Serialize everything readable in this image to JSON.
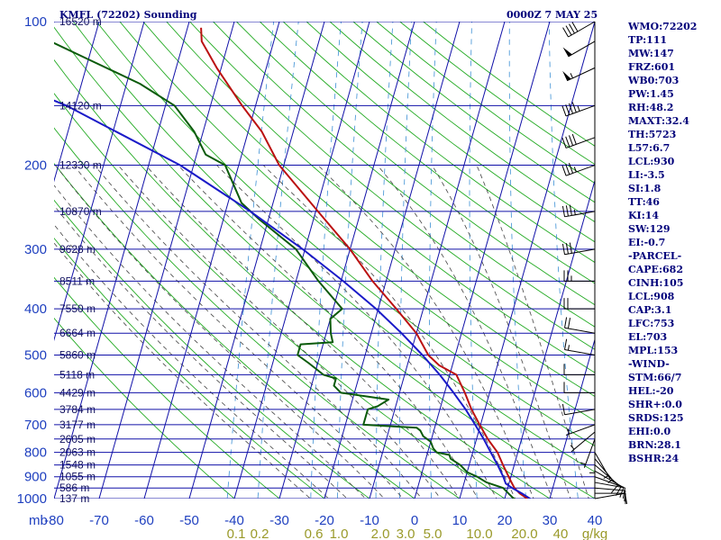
{
  "header": {
    "title": "KMFL (72202) Sounding",
    "time": "0000Z  7 MAY 25"
  },
  "stats": [
    "WMO:72202",
    "TP:111",
    "MW:147",
    "FRZ:601",
    "WB0:703",
    "PW:1.45",
    "RH:48.2",
    "MAXT:32.4",
    "TH:5723",
    "L57:6.7",
    "LCL:930",
    "LI:-3.5",
    "SI:1.8",
    "TT:46",
    "KI:14",
    "SW:129",
    "EI:-0.7",
    "-PARCEL-",
    "CAPE:682",
    "CINH:105",
    "LCL:908",
    "CAP:3.1",
    "LFC:753",
    "EL:703",
    "MPL:153",
    "-WIND-",
    "STM:66/7",
    "HEL:-20",
    "SHR+:0.0",
    "SRDS:125",
    "EHI:0.0",
    "BRN:28.1",
    "BSHR:24"
  ],
  "colors": {
    "isobar": "#1010a8",
    "isotherm": "#1010a8",
    "dry_adiabat": "#22aa22",
    "moist_adiabat": "#444444",
    "mixing_ratio": "#3b8fd4",
    "temperature": "#bb1111",
    "dewpoint": "#0a5a0a",
    "parcel": "#1a1ac8",
    "wind_barb": "#000000"
  },
  "chart_data": {
    "type": "skew-t",
    "title": "KMFL (72202) Sounding",
    "time_label": "0000Z  7 MAY 25",
    "y_unit": "mb",
    "y_scale": "log",
    "y_range": [
      1000,
      100
    ],
    "x_range": [
      -80,
      40
    ],
    "pressure_ticks": [
      100,
      200,
      300,
      400,
      500,
      600,
      700,
      800,
      900,
      1000
    ],
    "pressure_tick_labels": [
      "100",
      "200",
      "300",
      "400",
      "500",
      "600",
      "700",
      "800",
      "900",
      "1000"
    ],
    "temperature_ticks": [
      -80,
      -70,
      -60,
      -50,
      -40,
      -30,
      -20,
      -10,
      0,
      10,
      20,
      30,
      40
    ],
    "temperature_tick_labels": [
      "-80",
      "-70",
      "-60",
      "-50",
      "-40",
      "-30",
      "-20",
      "-10",
      "0",
      "10",
      "20",
      "30",
      "40"
    ],
    "mixing_ratio_labels": [
      "0.1",
      "0.2",
      "0.6",
      "1.0",
      "2.0",
      "3.0",
      "5.0",
      "10.0",
      "20.0",
      "40",
      "g/kg"
    ],
    "height_labels": [
      {
        "p": 100,
        "text": "16520 m"
      },
      {
        "p": 150,
        "text": "14120 m"
      },
      {
        "p": 200,
        "text": "12330 m"
      },
      {
        "p": 250,
        "text": "10870 m"
      },
      {
        "p": 300,
        "text": "9628 m"
      },
      {
        "p": 350,
        "text": "8511 m"
      },
      {
        "p": 400,
        "text": "7550 m"
      },
      {
        "p": 450,
        "text": "6664 m"
      },
      {
        "p": 500,
        "text": "5860 m"
      },
      {
        "p": 550,
        "text": "5118 m"
      },
      {
        "p": 600,
        "text": "4429 m"
      },
      {
        "p": 650,
        "text": "3784 m"
      },
      {
        "p": 700,
        "text": "3177 m"
      },
      {
        "p": 750,
        "text": "2605 m"
      },
      {
        "p": 800,
        "text": "2063 m"
      },
      {
        "p": 850,
        "text": "1548 m"
      },
      {
        "p": 900,
        "text": "1055 m"
      },
      {
        "p": 950,
        "text": "586 m"
      },
      {
        "p": 1000,
        "text": "137 m"
      }
    ],
    "series": [
      {
        "name": "temperature",
        "points": [
          [
            1005,
            26
          ],
          [
            1000,
            25
          ],
          [
            975,
            23
          ],
          [
            950,
            21.5
          ],
          [
            925,
            20.5
          ],
          [
            900,
            19.5
          ],
          [
            850,
            17.5
          ],
          [
            800,
            15.5
          ],
          [
            750,
            12.5
          ],
          [
            700,
            9.8
          ],
          [
            650,
            7
          ],
          [
            600,
            4.5
          ],
          [
            550,
            1.5
          ],
          [
            525,
            -3
          ],
          [
            500,
            -6
          ],
          [
            450,
            -10
          ],
          [
            400,
            -16
          ],
          [
            350,
            -23
          ],
          [
            300,
            -30
          ],
          [
            250,
            -39.5
          ],
          [
            200,
            -51
          ],
          [
            170,
            -57
          ],
          [
            150,
            -63
          ],
          [
            125,
            -71
          ],
          [
            110,
            -76
          ],
          [
            103,
            -77
          ]
        ]
      },
      {
        "name": "dewpoint",
        "points": [
          [
            1005,
            22.5
          ],
          [
            1000,
            22
          ],
          [
            975,
            20.5
          ],
          [
            950,
            19
          ],
          [
            925,
            15
          ],
          [
            900,
            12.5
          ],
          [
            880,
            10
          ],
          [
            850,
            8
          ],
          [
            825,
            5.5
          ],
          [
            810,
            5
          ],
          [
            800,
            2
          ],
          [
            785,
            1
          ],
          [
            760,
            0
          ],
          [
            740,
            -2
          ],
          [
            720,
            -3
          ],
          [
            710,
            -4
          ],
          [
            700,
            -16
          ],
          [
            650,
            -16
          ],
          [
            640,
            -14
          ],
          [
            620,
            -12
          ],
          [
            600,
            -23
          ],
          [
            580,
            -25
          ],
          [
            560,
            -25
          ],
          [
            550,
            -28
          ],
          [
            520,
            -32
          ],
          [
            500,
            -35
          ],
          [
            475,
            -35
          ],
          [
            470,
            -28
          ],
          [
            450,
            -29
          ],
          [
            420,
            -30
          ],
          [
            400,
            -28
          ],
          [
            350,
            -35
          ],
          [
            300,
            -42
          ],
          [
            260,
            -52
          ],
          [
            240,
            -57
          ],
          [
            200,
            -63
          ],
          [
            190,
            -68
          ],
          [
            170,
            -72
          ],
          [
            150,
            -78
          ],
          [
            135,
            -87
          ],
          [
            120,
            -100
          ],
          [
            100,
            -120
          ]
        ]
      },
      {
        "name": "parcel",
        "points": [
          [
            1005,
            26
          ],
          [
            975,
            23.5
          ],
          [
            950,
            21
          ],
          [
            930,
            19.3
          ],
          [
            900,
            18.3
          ],
          [
            850,
            16.3
          ],
          [
            800,
            14
          ],
          [
            750,
            11.6
          ],
          [
            700,
            8.8
          ],
          [
            650,
            5.7
          ],
          [
            600,
            2
          ],
          [
            550,
            -2.2
          ],
          [
            500,
            -7.3
          ],
          [
            450,
            -13.3
          ],
          [
            400,
            -20.5
          ],
          [
            350,
            -29.5
          ],
          [
            300,
            -40.5
          ],
          [
            250,
            -54.5
          ],
          [
            200,
            -73
          ],
          [
            150,
            -102
          ],
          [
            120,
            -130
          ]
        ]
      }
    ],
    "wind_barbs": [
      {
        "p": 1000,
        "dir": 80,
        "spd": 10
      },
      {
        "p": 975,
        "dir": 90,
        "spd": 12
      },
      {
        "p": 950,
        "dir": 95,
        "spd": 12
      },
      {
        "p": 925,
        "dir": 100,
        "spd": 10
      },
      {
        "p": 900,
        "dir": 110,
        "spd": 10
      },
      {
        "p": 875,
        "dir": 120,
        "spd": 8
      },
      {
        "p": 850,
        "dir": 130,
        "spd": 8
      },
      {
        "p": 825,
        "dir": 140,
        "spd": 6
      },
      {
        "p": 800,
        "dir": 150,
        "spd": 5
      },
      {
        "p": 775,
        "dir": 180,
        "spd": 5
      },
      {
        "p": 750,
        "dir": 200,
        "spd": 5
      },
      {
        "p": 725,
        "dir": 230,
        "spd": 5
      },
      {
        "p": 700,
        "dir": 250,
        "spd": 5
      },
      {
        "p": 650,
        "dir": 260,
        "spd": 8
      },
      {
        "p": 600,
        "dir": 270,
        "spd": 10
      },
      {
        "p": 550,
        "dir": 270,
        "spd": 12
      },
      {
        "p": 500,
        "dir": 280,
        "spd": 15
      },
      {
        "p": 450,
        "dir": 280,
        "spd": 20
      },
      {
        "p": 400,
        "dir": 270,
        "spd": 20
      },
      {
        "p": 350,
        "dir": 270,
        "spd": 25
      },
      {
        "p": 300,
        "dir": 260,
        "spd": 30
      },
      {
        "p": 250,
        "dir": 260,
        "spd": 35
      },
      {
        "p": 200,
        "dir": 250,
        "spd": 35
      },
      {
        "p": 175,
        "dir": 250,
        "spd": 40
      },
      {
        "p": 150,
        "dir": 250,
        "spd": 45
      },
      {
        "p": 125,
        "dir": 245,
        "spd": 55
      },
      {
        "p": 110,
        "dir": 240,
        "spd": 50
      },
      {
        "p": 100,
        "dir": 240,
        "spd": 40
      }
    ]
  }
}
